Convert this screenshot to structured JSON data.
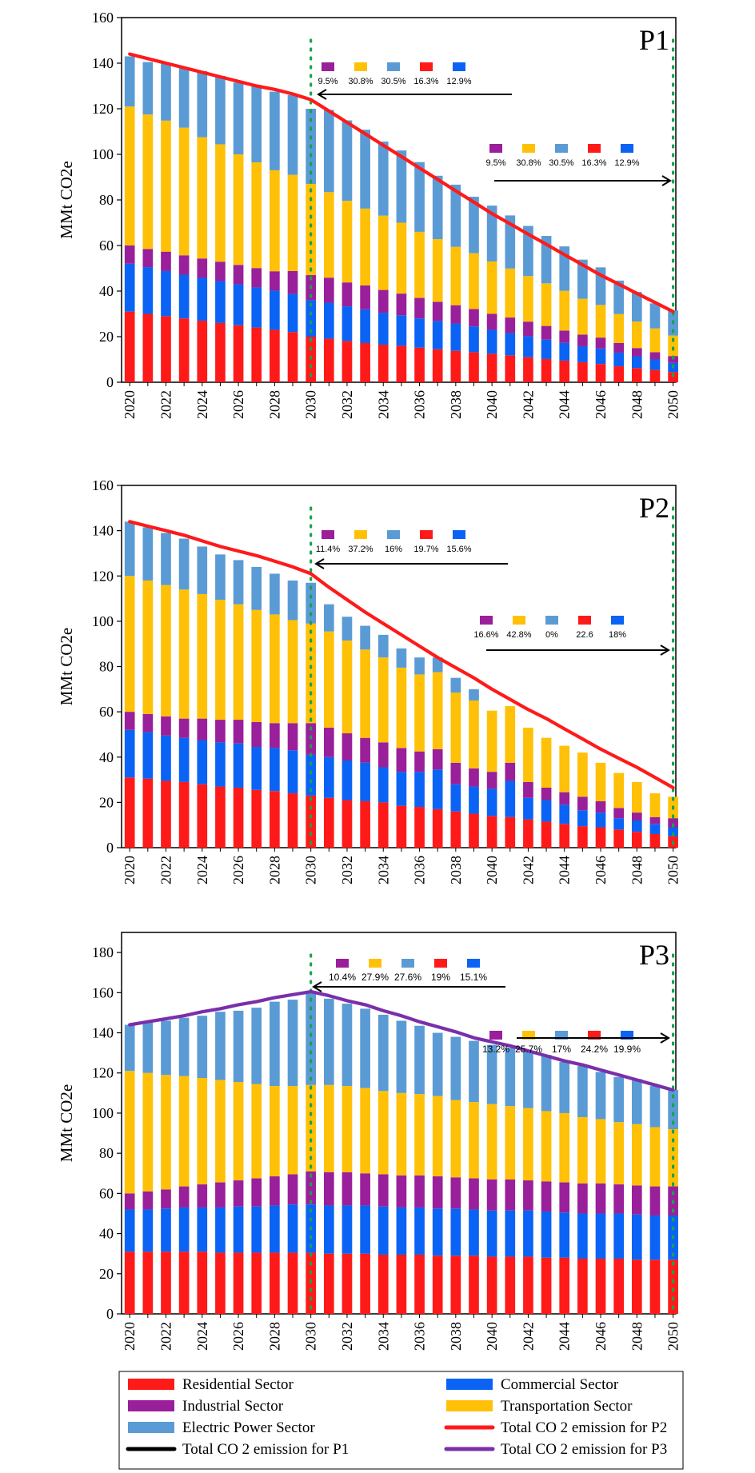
{
  "colors": {
    "residential": "#ff1a1a",
    "commercial": "#0a63f5",
    "industrial": "#9a1f9a",
    "transportation": "#ffc107",
    "electric": "#5b9bd5",
    "p1_line": "#ff1a1a",
    "p2_line": "#ff1a1a",
    "p3_line": "#7a2faa",
    "marker": "#17a34a"
  },
  "legend": {
    "residential": "Residential Sector",
    "commercial": "Commercial Sector",
    "industrial": "Industrial Sector",
    "transportation": "Transportation Sector",
    "electric": "Electric Power Sector",
    "total_p2": "Total CO 2 emission for P2",
    "total_p1": "Total CO 2 emission for P1",
    "total_p3": "Total CO 2 emission for P3"
  },
  "chart_data": [
    {
      "type": "bar",
      "stacked": true,
      "title": "P1",
      "ylabel": "MMt CO2e",
      "ylim": [
        0,
        160
      ],
      "yticks": [
        0,
        20,
        40,
        60,
        80,
        100,
        120,
        140,
        160
      ],
      "x": [
        2020,
        2021,
        2022,
        2023,
        2024,
        2025,
        2026,
        2027,
        2028,
        2029,
        2030,
        2031,
        2032,
        2033,
        2034,
        2035,
        2036,
        2037,
        2038,
        2039,
        2040,
        2041,
        2042,
        2043,
        2044,
        2045,
        2046,
        2047,
        2048,
        2049,
        2050
      ],
      "xticks": [
        "2020",
        "2022",
        "2024",
        "2026",
        "2028",
        "2030",
        "2032",
        "2034",
        "2036",
        "2038",
        "2040",
        "2042",
        "2044",
        "2046",
        "2048",
        "2050"
      ],
      "series": [
        {
          "key": "residential",
          "values": [
            31,
            30,
            29,
            28,
            27,
            26,
            25,
            24,
            23,
            22,
            20,
            19.1,
            18.1,
            17.2,
            16.5,
            16,
            15.2,
            14.5,
            13.8,
            13.2,
            12.5,
            11.8,
            11,
            10.2,
            9.5,
            8.8,
            8,
            7,
            6.2,
            5.4,
            4.5
          ]
        },
        {
          "key": "commercial",
          "values": [
            21,
            20.5,
            19.8,
            19.2,
            18.8,
            18.4,
            18,
            17.6,
            17.2,
            16.8,
            16,
            15.8,
            15.2,
            14.8,
            14,
            13.4,
            12.8,
            12.4,
            12,
            11.3,
            10.5,
            9.8,
            9.2,
            8.5,
            7.8,
            7,
            6.8,
            6,
            5.2,
            4.6,
            4
          ]
        },
        {
          "key": "industrial",
          "values": [
            8,
            8,
            8.5,
            8.5,
            8.5,
            8.5,
            8.5,
            8.5,
            8.5,
            10,
            11,
            11,
            10.5,
            10.5,
            10,
            9.5,
            9,
            8.4,
            8,
            7.6,
            7,
            6.8,
            6.4,
            6,
            5.4,
            5.1,
            4.8,
            4.2,
            3.6,
            3.2,
            3
          ]
        },
        {
          "key": "transportation",
          "values": [
            61,
            59,
            57.5,
            56,
            53.2,
            51.5,
            48.5,
            46.4,
            44.3,
            42.2,
            40,
            37.5,
            35.8,
            33.7,
            32.6,
            31.1,
            29,
            27.5,
            25.6,
            24.5,
            23,
            21.5,
            20,
            18.7,
            17.4,
            15.7,
            14.3,
            12.7,
            11.6,
            10.4,
            9
          ]
        },
        {
          "key": "electric",
          "values": [
            22,
            23,
            25,
            26.5,
            29,
            30,
            31.5,
            33.5,
            34.5,
            35,
            33,
            36.1,
            35.3,
            34.6,
            32.5,
            31.7,
            30.6,
            27.8,
            27.3,
            24.8,
            24.5,
            23.3,
            22,
            20.8,
            19.5,
            17.2,
            16.5,
            14.7,
            13,
            11,
            11
          ]
        }
      ],
      "total_line": {
        "key": "p1_line",
        "values": [
          144,
          142,
          140,
          138,
          136,
          134,
          132,
          130,
          128.5,
          126.5,
          124,
          119,
          114,
          109,
          104,
          99,
          94,
          89,
          84,
          79,
          74,
          69.5,
          65,
          60.5,
          56,
          51.5,
          47,
          43,
          39,
          35,
          31
        ]
      },
      "marker_years": [
        2030,
        2050
      ],
      "annotations": [
        {
          "percents": [
            "9.5%",
            "30.8%",
            "30.5%",
            "16.3%",
            "12.9%"
          ],
          "arrow": "left"
        },
        {
          "percents": [
            "9.5%",
            "30.8%",
            "30.5%",
            "16.3%",
            "12.9%"
          ],
          "arrow": "right"
        }
      ]
    },
    {
      "type": "bar",
      "stacked": true,
      "title": "P2",
      "ylabel": "MMt CO2e",
      "ylim": [
        0,
        160
      ],
      "yticks": [
        0,
        20,
        40,
        60,
        80,
        100,
        120,
        140,
        160
      ],
      "x": [
        2020,
        2021,
        2022,
        2023,
        2024,
        2025,
        2026,
        2027,
        2028,
        2029,
        2030,
        2031,
        2032,
        2033,
        2034,
        2035,
        2036,
        2037,
        2038,
        2039,
        2040,
        2041,
        2042,
        2043,
        2044,
        2045,
        2046,
        2047,
        2048,
        2049,
        2050
      ],
      "xticks": [
        "2020",
        "2022",
        "2024",
        "2026",
        "2028",
        "2030",
        "2032",
        "2034",
        "2036",
        "2038",
        "2040",
        "2042",
        "2044",
        "2046",
        "2048",
        "2050"
      ],
      "series": [
        {
          "key": "residential",
          "values": [
            31,
            30.5,
            29.5,
            29,
            28,
            27,
            26.5,
            25.5,
            25,
            24,
            23,
            22,
            21,
            20.5,
            20,
            18.5,
            18,
            17,
            16,
            15,
            14,
            13.5,
            12.5,
            11.5,
            10.5,
            9.5,
            9,
            8,
            7,
            6,
            5
          ]
        },
        {
          "key": "commercial",
          "values": [
            21,
            20.5,
            20,
            19.5,
            19.5,
            19.5,
            19.5,
            19,
            19,
            19,
            18,
            18,
            17.5,
            17,
            15.5,
            15,
            15.5,
            17.5,
            12,
            12,
            12,
            16,
            9.5,
            9.5,
            8.5,
            7,
            6.5,
            5,
            5,
            4.5,
            4
          ]
        },
        {
          "key": "industrial",
          "values": [
            8,
            8,
            8.5,
            8.5,
            9.5,
            10,
            10.5,
            11,
            11,
            12,
            14,
            13,
            12,
            11,
            11,
            10.5,
            9,
            9,
            9.5,
            8,
            7.5,
            8,
            7,
            5.5,
            5.5,
            6,
            5,
            4.5,
            3.5,
            3,
            4
          ]
        },
        {
          "key": "transportation",
          "values": [
            60,
            59,
            58,
            57,
            55,
            53,
            51,
            49.5,
            48,
            45.5,
            44,
            42.5,
            41,
            39,
            37.5,
            35.5,
            34,
            34,
            31,
            30,
            27,
            25,
            24,
            22,
            20.5,
            19.5,
            17,
            15.5,
            13.5,
            10.5,
            9.5
          ]
        },
        {
          "key": "electric",
          "values": [
            24,
            23.5,
            23,
            22.5,
            21,
            20,
            19.5,
            19,
            18,
            17.5,
            18,
            12,
            10.5,
            10.5,
            10,
            8.5,
            7.5,
            6.5,
            6.5,
            5,
            0,
            0,
            0,
            0,
            0,
            0,
            0,
            0,
            0,
            0,
            0
          ]
        }
      ],
      "total_line": {
        "key": "p2_line",
        "values": [
          144,
          142,
          140,
          138,
          135.5,
          133,
          131,
          129,
          126.5,
          124,
          121,
          115,
          109.5,
          104,
          99,
          94,
          89,
          84,
          79.5,
          75,
          70,
          65.5,
          61,
          57,
          52.5,
          48,
          43.5,
          39.5,
          35.5,
          31,
          26.5
        ]
      },
      "marker_years": [
        2030,
        2050
      ],
      "annotations": [
        {
          "percents": [
            "11.4%",
            "37.2%",
            "16%",
            "19.7%",
            "15.6%"
          ],
          "arrow": "left"
        },
        {
          "percents": [
            "16.6%",
            "42.8%",
            "0%",
            "22.6",
            "18%"
          ],
          "arrow": "right"
        }
      ]
    },
    {
      "type": "bar",
      "stacked": true,
      "title": "P3",
      "ylabel": "MMt CO2e",
      "ylim": [
        0,
        190
      ],
      "yticks": [
        0,
        20,
        40,
        60,
        80,
        100,
        120,
        140,
        160,
        180
      ],
      "x": [
        2020,
        2021,
        2022,
        2023,
        2024,
        2025,
        2026,
        2027,
        2028,
        2029,
        2030,
        2031,
        2032,
        2033,
        2034,
        2035,
        2036,
        2037,
        2038,
        2039,
        2040,
        2041,
        2042,
        2043,
        2044,
        2045,
        2046,
        2047,
        2048,
        2049,
        2050
      ],
      "xticks": [
        "2020",
        "2022",
        "2024",
        "2026",
        "2028",
        "2030",
        "2032",
        "2034",
        "2036",
        "2038",
        "2040",
        "2042",
        "2044",
        "2046",
        "2048",
        "2050"
      ],
      "series": [
        {
          "key": "residential",
          "values": [
            31,
            31,
            31,
            31,
            31,
            30.5,
            30.5,
            30.5,
            30.5,
            30.5,
            30.5,
            30,
            30,
            30,
            29.5,
            29.5,
            29.5,
            29,
            29,
            29,
            28.5,
            28.5,
            28.5,
            28,
            28,
            27.5,
            27.5,
            27.5,
            27,
            27,
            27
          ]
        },
        {
          "key": "commercial",
          "values": [
            21,
            21,
            21.5,
            22,
            22,
            22.5,
            23,
            23,
            23.5,
            24,
            24,
            24,
            24,
            24,
            24,
            23.5,
            23.5,
            23.5,
            23.5,
            23,
            23,
            23,
            23,
            23,
            22.5,
            22.5,
            22.5,
            22.5,
            22.5,
            22,
            22
          ]
        },
        {
          "key": "industrial",
          "values": [
            8,
            9,
            9.5,
            10.5,
            11.5,
            12.5,
            13,
            14,
            14.5,
            15,
            16.5,
            16.5,
            16.5,
            16,
            16,
            16,
            16,
            16,
            15.5,
            15.5,
            15.5,
            15.5,
            15,
            15,
            15,
            15,
            15,
            14.5,
            14.5,
            14.5,
            14.5
          ]
        },
        {
          "key": "transportation",
          "values": [
            61,
            59,
            57,
            55,
            53,
            51,
            49,
            47,
            45,
            44,
            43,
            43.5,
            43,
            42.5,
            41.5,
            41,
            40.5,
            40,
            38.5,
            38,
            37.5,
            36.5,
            36,
            35,
            34.5,
            33,
            32,
            31,
            30.5,
            29.5,
            28.5
          ]
        },
        {
          "key": "electric",
          "values": [
            23,
            25,
            27,
            29,
            31,
            34,
            35.5,
            38,
            42,
            43,
            46,
            43,
            41,
            39.5,
            38,
            36,
            34,
            31.5,
            31.5,
            30.5,
            29.5,
            29,
            28,
            28,
            25.5,
            25.5,
            23.5,
            22.5,
            22.5,
            20.5,
            19.5
          ]
        }
      ],
      "total_line": {
        "key": "p3_line",
        "values": [
          144,
          145.5,
          147,
          148.5,
          150.5,
          152,
          154,
          155.5,
          157.5,
          159,
          160.5,
          158.5,
          156,
          154,
          151,
          148.5,
          145.5,
          143,
          140.5,
          137.5,
          135.5,
          133.5,
          131,
          128.5,
          126,
          124,
          121.5,
          119,
          116.5,
          114,
          111.5
        ]
      },
      "marker_years": [
        2030,
        2050
      ],
      "annotations": [
        {
          "percents": [
            "10.4%",
            "27.9%",
            "27.6%",
            "19%",
            "15.1%"
          ],
          "arrow": "left"
        },
        {
          "percents": [
            "13.2%",
            "25.7%",
            "17%",
            "24.2%",
            "19.9%"
          ],
          "arrow": "right"
        }
      ]
    }
  ]
}
